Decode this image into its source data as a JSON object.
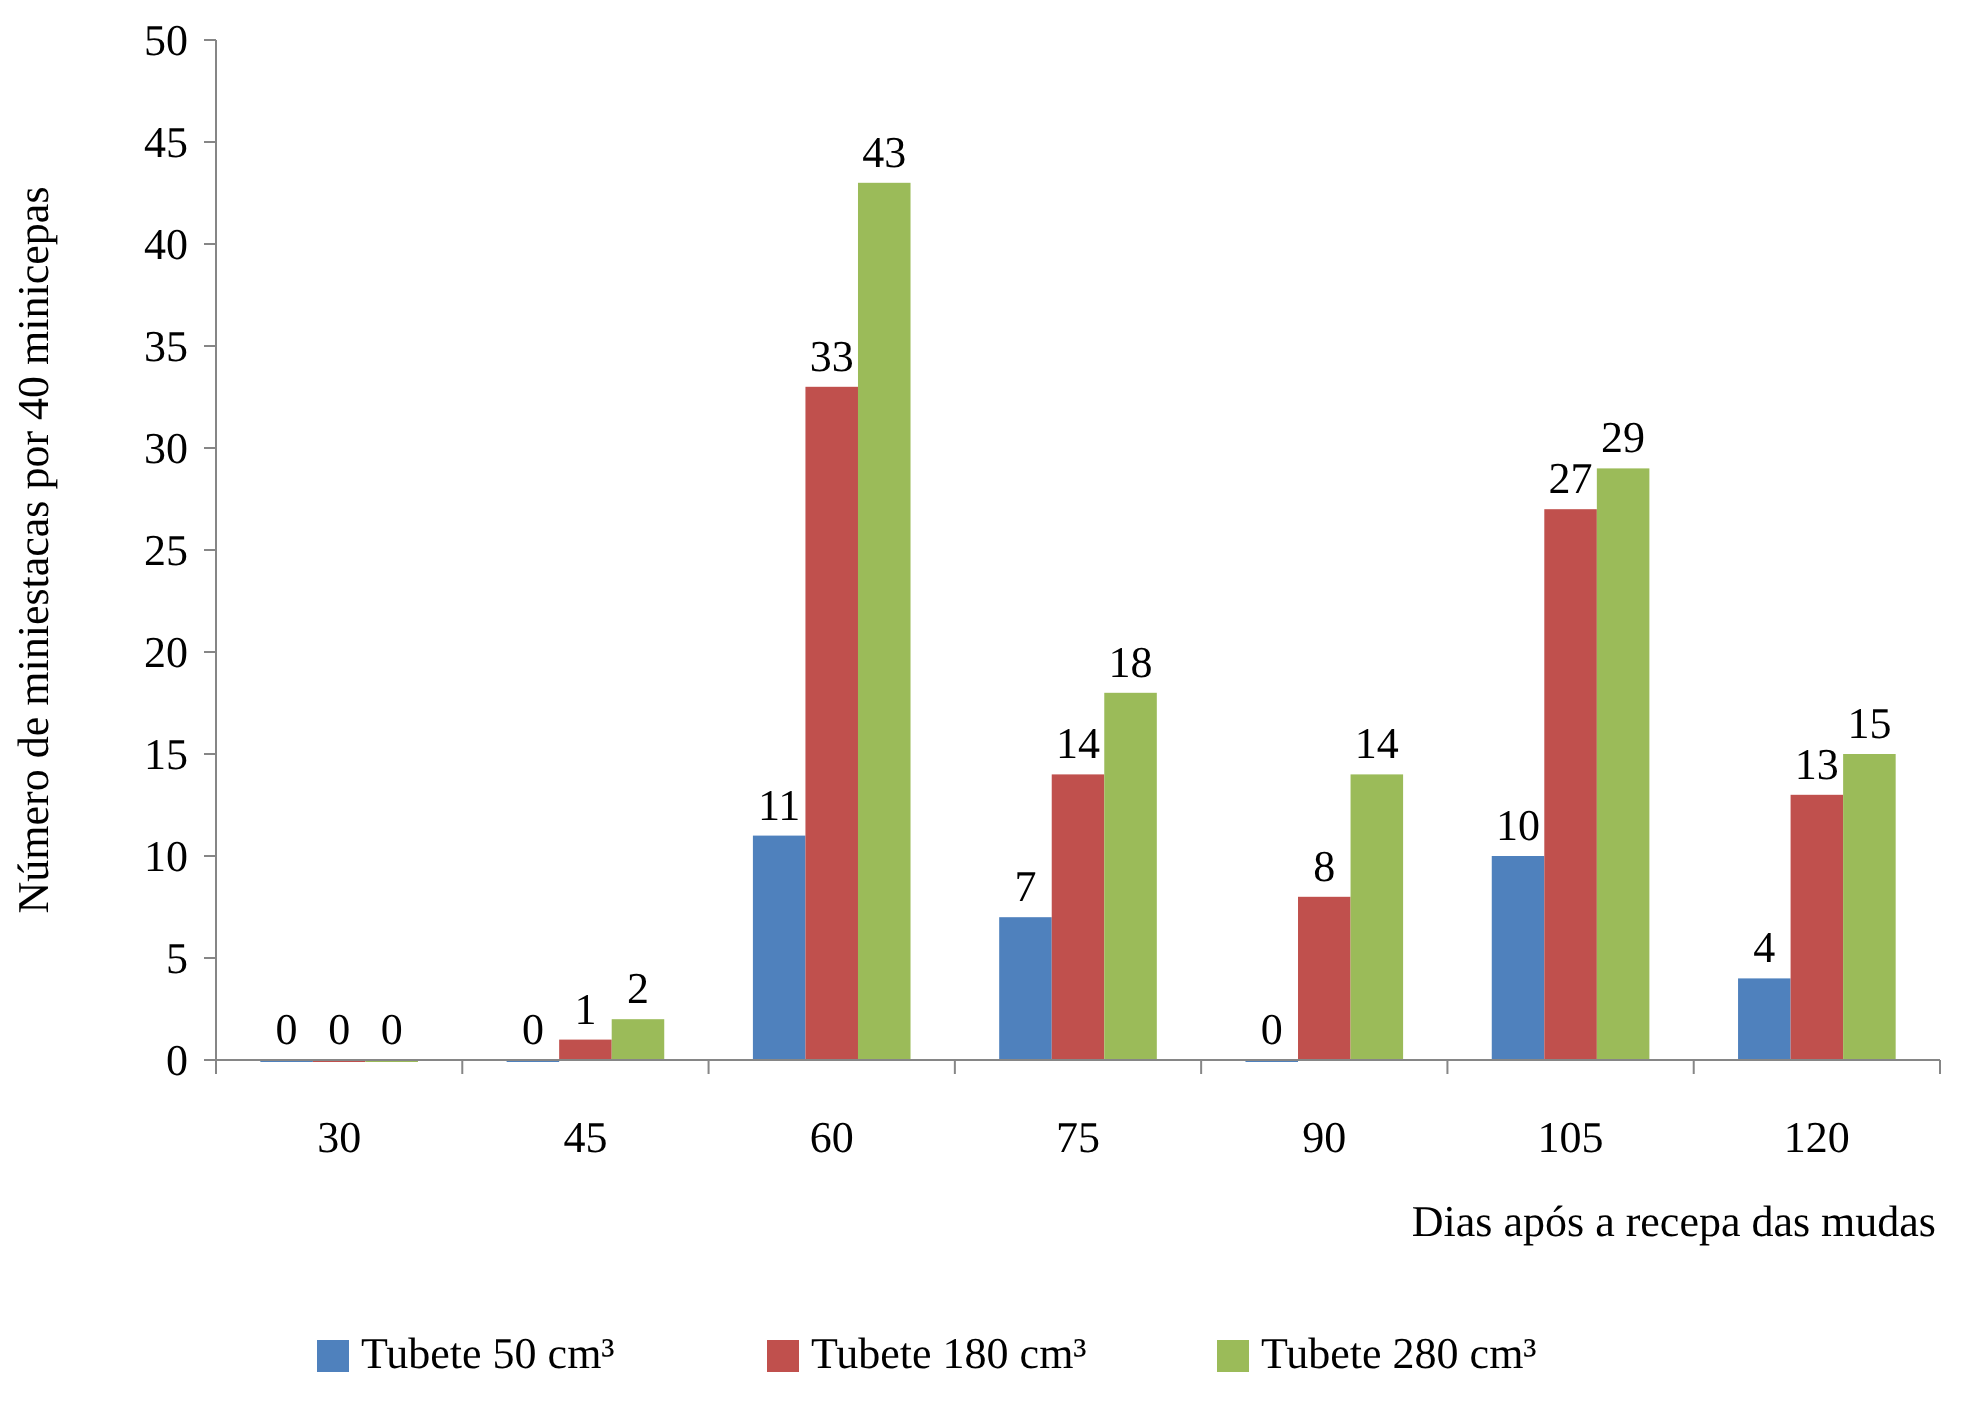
{
  "chart_data": {
    "type": "bar",
    "xlabel": "Dias após a recepa das mudas",
    "ylabel": "Número de miniestacas por 40 minicepas",
    "categories": [
      "30",
      "45",
      "60",
      "75",
      "90",
      "105",
      "120"
    ],
    "series": [
      {
        "name": "Tubete 50 cm³",
        "color": "#4f81bd",
        "values": [
          0,
          0,
          11,
          7,
          0,
          10,
          4
        ]
      },
      {
        "name": "Tubete 180 cm³",
        "color": "#c0504d",
        "values": [
          0,
          1,
          33,
          14,
          8,
          27,
          13
        ]
      },
      {
        "name": "Tubete 280 cm³",
        "color": "#9bbb59",
        "values": [
          0,
          2,
          43,
          18,
          14,
          29,
          15
        ]
      }
    ],
    "ylim": [
      0,
      50
    ],
    "yticks": [
      0,
      5,
      10,
      15,
      20,
      25,
      30,
      35,
      40,
      45,
      50
    ],
    "grid": false,
    "legend": "bottom",
    "data_labels": true
  }
}
